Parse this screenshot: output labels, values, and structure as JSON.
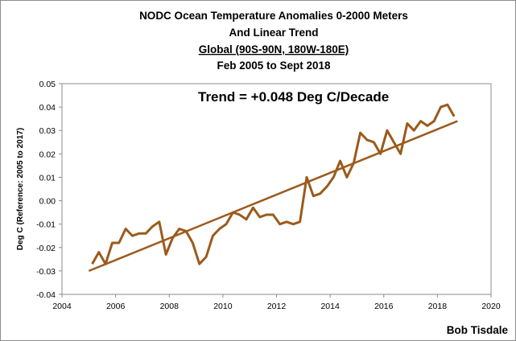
{
  "chart_data": {
    "type": "line",
    "title_lines": [
      "NODC Ocean Temperature Anomalies 0-2000 Meters",
      "And Linear Trend",
      "Global (90S-90N, 180W-180E)",
      "Feb 2005 to Sept 2018"
    ],
    "xlabel": "",
    "ylabel": "Deg C (Reference: 2005 to 2017)",
    "xlim": [
      2004,
      2020
    ],
    "ylim": [
      -0.04,
      0.05
    ],
    "x_ticks": [
      2004,
      2006,
      2008,
      2010,
      2012,
      2014,
      2016,
      2018,
      2020
    ],
    "y_ticks": [
      0.05,
      0.04,
      0.03,
      0.02,
      0.01,
      0.0,
      -0.01,
      -0.02,
      -0.03,
      -0.04
    ],
    "y_tick_labels": [
      "0.05",
      "0.04",
      "0.03",
      "0.02",
      "0.01",
      "0.00",
      "-0.01",
      "-0.02",
      "-0.03",
      "-0.04"
    ],
    "grid": false,
    "annotation": "Trend = +0.048 Deg C/Decade",
    "line_color": "#9c5a1c",
    "series": [
      {
        "x": [
          2005.125,
          2005.375,
          2005.625,
          2005.875,
          2006.125,
          2006.375,
          2006.625,
          2006.875,
          2007.125,
          2007.375,
          2007.625,
          2007.875,
          2008.125,
          2008.375,
          2008.625,
          2008.875,
          2009.125,
          2009.375,
          2009.625,
          2009.875,
          2010.125,
          2010.375,
          2010.625,
          2010.875,
          2011.125,
          2011.375,
          2011.625,
          2011.875,
          2012.125,
          2012.375,
          2012.625,
          2012.875,
          2013.125,
          2013.375,
          2013.625,
          2013.875,
          2014.125,
          2014.375,
          2014.625,
          2014.875,
          2015.125,
          2015.375,
          2015.625,
          2015.875,
          2016.125,
          2016.375,
          2016.625,
          2016.875,
          2017.125,
          2017.375,
          2017.625,
          2017.875,
          2018.125,
          2018.375,
          2018.625
        ],
        "y": [
          -0.027,
          -0.022,
          -0.027,
          -0.018,
          -0.018,
          -0.012,
          -0.015,
          -0.014,
          -0.014,
          -0.011,
          -0.009,
          -0.023,
          -0.016,
          -0.012,
          -0.013,
          -0.018,
          -0.027,
          -0.024,
          -0.015,
          -0.012,
          -0.01,
          -0.005,
          -0.006,
          -0.008,
          -0.003,
          -0.007,
          -0.006,
          -0.006,
          -0.01,
          -0.009,
          -0.01,
          -0.009,
          0.01,
          0.002,
          0.003,
          0.006,
          0.01,
          0.017,
          0.01,
          0.016,
          0.029,
          0.026,
          0.025,
          0.02,
          0.03,
          0.025,
          0.02,
          0.033,
          0.03,
          0.034,
          0.032,
          0.034,
          0.04,
          0.041,
          0.036
        ]
      }
    ],
    "trend_line": {
      "x": [
        2005.0,
        2018.75
      ],
      "y": [
        -0.03,
        0.034
      ]
    }
  },
  "credit": "Bob Tisdale"
}
